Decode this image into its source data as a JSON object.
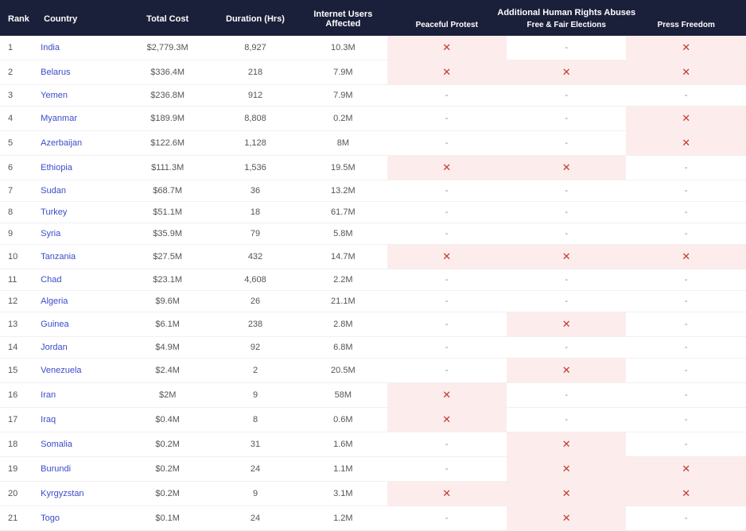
{
  "table": {
    "columns": {
      "rank": "Rank",
      "country": "Country",
      "cost": "Total Cost",
      "duration": "Duration (Hrs)",
      "users": "Internet Users Affected",
      "abuse_group": "Additional Human Rights Abuses",
      "abuse_protest": "Peaceful Protest",
      "abuse_elections": "Free & Fair Elections",
      "abuse_press": "Press Freedom"
    },
    "colors": {
      "header_bg": "#1a1f3a",
      "header_text": "#ffffff",
      "link": "#3b4cca",
      "flag_bg": "#fdecec",
      "cross": "#c0392b",
      "row_border": "#f0f0f0"
    },
    "cross_glyph": "✕",
    "dash_glyph": "-",
    "rows": [
      {
        "rank": "1",
        "country": "India",
        "cost": "$2,779.3M",
        "duration": "8,927",
        "users": "10.3M",
        "protest": true,
        "elections": false,
        "press": true
      },
      {
        "rank": "2",
        "country": "Belarus",
        "cost": "$336.4M",
        "duration": "218",
        "users": "7.9M",
        "protest": true,
        "elections": true,
        "press": true
      },
      {
        "rank": "3",
        "country": "Yemen",
        "cost": "$236.8M",
        "duration": "912",
        "users": "7.9M",
        "protest": false,
        "elections": false,
        "press": false
      },
      {
        "rank": "4",
        "country": "Myanmar",
        "cost": "$189.9M",
        "duration": "8,808",
        "users": "0.2M",
        "protest": false,
        "elections": false,
        "press": true
      },
      {
        "rank": "5",
        "country": "Azerbaijan",
        "cost": "$122.6M",
        "duration": "1,128",
        "users": "8M",
        "protest": false,
        "elections": false,
        "press": true
      },
      {
        "rank": "6",
        "country": "Ethiopia",
        "cost": "$111.3M",
        "duration": "1,536",
        "users": "19.5M",
        "protest": true,
        "elections": true,
        "press": false
      },
      {
        "rank": "7",
        "country": "Sudan",
        "cost": "$68.7M",
        "duration": "36",
        "users": "13.2M",
        "protest": false,
        "elections": false,
        "press": false
      },
      {
        "rank": "8",
        "country": "Turkey",
        "cost": "$51.1M",
        "duration": "18",
        "users": "61.7M",
        "protest": false,
        "elections": false,
        "press": false
      },
      {
        "rank": "9",
        "country": "Syria",
        "cost": "$35.9M",
        "duration": "79",
        "users": "5.8M",
        "protest": false,
        "elections": false,
        "press": false
      },
      {
        "rank": "10",
        "country": "Tanzania",
        "cost": "$27.5M",
        "duration": "432",
        "users": "14.7M",
        "protest": true,
        "elections": true,
        "press": true
      },
      {
        "rank": "11",
        "country": "Chad",
        "cost": "$23.1M",
        "duration": "4,608",
        "users": "2.2M",
        "protest": false,
        "elections": false,
        "press": false
      },
      {
        "rank": "12",
        "country": "Algeria",
        "cost": "$9.6M",
        "duration": "26",
        "users": "21.1M",
        "protest": false,
        "elections": false,
        "press": false
      },
      {
        "rank": "13",
        "country": "Guinea",
        "cost": "$6.1M",
        "duration": "238",
        "users": "2.8M",
        "protest": false,
        "elections": true,
        "press": false
      },
      {
        "rank": "14",
        "country": "Jordan",
        "cost": "$4.9M",
        "duration": "92",
        "users": "6.8M",
        "protest": false,
        "elections": false,
        "press": false
      },
      {
        "rank": "15",
        "country": "Venezuela",
        "cost": "$2.4M",
        "duration": "2",
        "users": "20.5M",
        "protest": false,
        "elections": true,
        "press": false
      },
      {
        "rank": "16",
        "country": "Iran",
        "cost": "$2M",
        "duration": "9",
        "users": "58M",
        "protest": true,
        "elections": false,
        "press": false
      },
      {
        "rank": "17",
        "country": "Iraq",
        "cost": "$0.4M",
        "duration": "8",
        "users": "0.6M",
        "protest": true,
        "elections": false,
        "press": false
      },
      {
        "rank": "18",
        "country": "Somalia",
        "cost": "$0.2M",
        "duration": "31",
        "users": "1.6M",
        "protest": false,
        "elections": true,
        "press": false
      },
      {
        "rank": "19",
        "country": "Burundi",
        "cost": "$0.2M",
        "duration": "24",
        "users": "1.1M",
        "protest": false,
        "elections": true,
        "press": true
      },
      {
        "rank": "20",
        "country": "Kyrgyzstan",
        "cost": "$0.2M",
        "duration": "9",
        "users": "3.1M",
        "protest": true,
        "elections": true,
        "press": true
      },
      {
        "rank": "21",
        "country": "Togo",
        "cost": "$0.1M",
        "duration": "24",
        "users": "1.2M",
        "protest": false,
        "elections": true,
        "press": false
      }
    ]
  }
}
